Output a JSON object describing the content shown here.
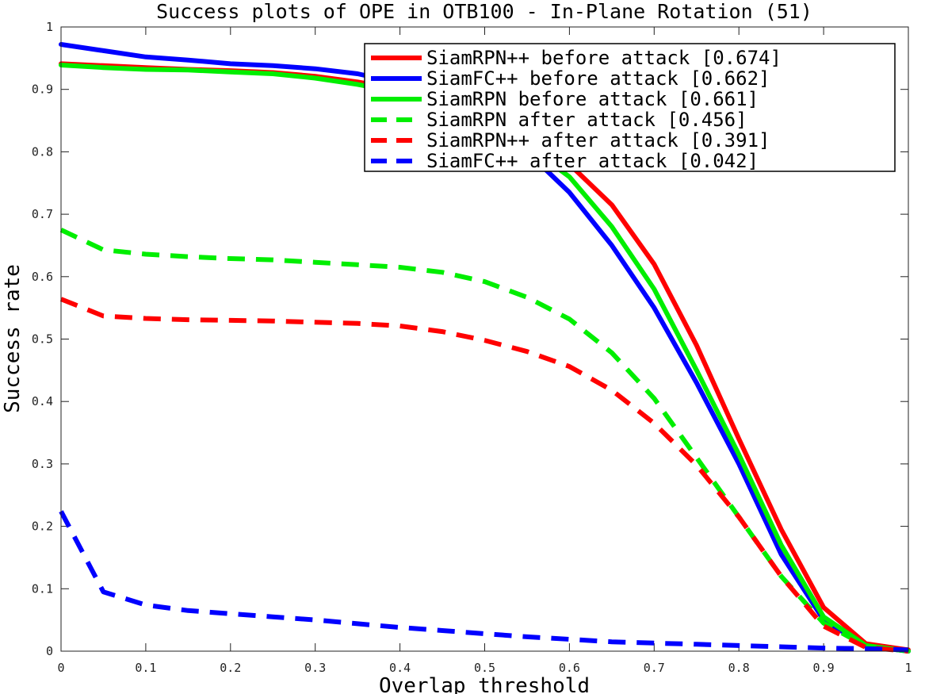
{
  "chart_data": {
    "type": "line",
    "title": "Success plots of OPE in OTB100 - In-Plane Rotation (51)",
    "xlabel": "Overlap threshold",
    "ylabel": "Success rate",
    "xlim": [
      0,
      1
    ],
    "ylim": [
      0,
      1
    ],
    "xticks": [
      "0",
      "0.1",
      "0.2",
      "0.3",
      "0.4",
      "0.5",
      "0.6",
      "0.7",
      "0.8",
      "0.9",
      "1"
    ],
    "yticks": [
      "0",
      "0.1",
      "0.2",
      "0.3",
      "0.4",
      "0.5",
      "0.6",
      "0.7",
      "0.8",
      "0.9",
      "1"
    ],
    "grid": false,
    "legend_position": "top-right",
    "x": [
      0,
      0.05,
      0.1,
      0.15,
      0.2,
      0.25,
      0.3,
      0.35,
      0.4,
      0.45,
      0.5,
      0.55,
      0.6,
      0.65,
      0.7,
      0.75,
      0.8,
      0.85,
      0.9,
      0.95,
      1.0
    ],
    "series": [
      {
        "name": "SiamRPN++ before attack [0.674]",
        "color": "#ff0000",
        "style": "solid",
        "values": [
          0.941,
          0.938,
          0.935,
          0.932,
          0.93,
          0.927,
          0.921,
          0.912,
          0.9,
          0.88,
          0.855,
          0.82,
          0.78,
          0.715,
          0.62,
          0.49,
          0.34,
          0.195,
          0.07,
          0.012,
          0.002
        ]
      },
      {
        "name": "SiamFC++ before attack [0.662]",
        "color": "#0000ff",
        "style": "solid",
        "values": [
          0.972,
          0.962,
          0.952,
          0.947,
          0.941,
          0.938,
          0.933,
          0.925,
          0.91,
          0.885,
          0.85,
          0.8,
          0.735,
          0.65,
          0.55,
          0.43,
          0.3,
          0.155,
          0.05,
          0.008,
          0.0
        ]
      },
      {
        "name": "SiamRPN before attack [0.661]",
        "color": "#00ee00",
        "style": "solid",
        "values": [
          0.939,
          0.935,
          0.932,
          0.931,
          0.928,
          0.925,
          0.918,
          0.908,
          0.895,
          0.875,
          0.85,
          0.81,
          0.76,
          0.68,
          0.58,
          0.45,
          0.315,
          0.17,
          0.055,
          0.009,
          0.0
        ]
      },
      {
        "name": "SiamRPN after attack [0.456]",
        "color": "#00ee00",
        "style": "dashed",
        "values": [
          0.675,
          0.643,
          0.636,
          0.632,
          0.629,
          0.627,
          0.623,
          0.619,
          0.615,
          0.607,
          0.592,
          0.567,
          0.532,
          0.478,
          0.405,
          0.31,
          0.215,
          0.12,
          0.045,
          0.008,
          0.0
        ]
      },
      {
        "name": "SiamRPN++ after attack [0.391]",
        "color": "#ff0000",
        "style": "dashed",
        "values": [
          0.564,
          0.537,
          0.533,
          0.531,
          0.53,
          0.529,
          0.527,
          0.525,
          0.521,
          0.512,
          0.498,
          0.48,
          0.456,
          0.418,
          0.365,
          0.298,
          0.215,
          0.12,
          0.04,
          0.006,
          0.0
        ]
      },
      {
        "name": "SiamFC++ after attack [0.042]",
        "color": "#0000ff",
        "style": "dashed",
        "values": [
          0.224,
          0.095,
          0.074,
          0.065,
          0.06,
          0.055,
          0.05,
          0.044,
          0.038,
          0.033,
          0.028,
          0.023,
          0.019,
          0.015,
          0.013,
          0.011,
          0.009,
          0.007,
          0.005,
          0.004,
          0.002
        ]
      }
    ]
  }
}
